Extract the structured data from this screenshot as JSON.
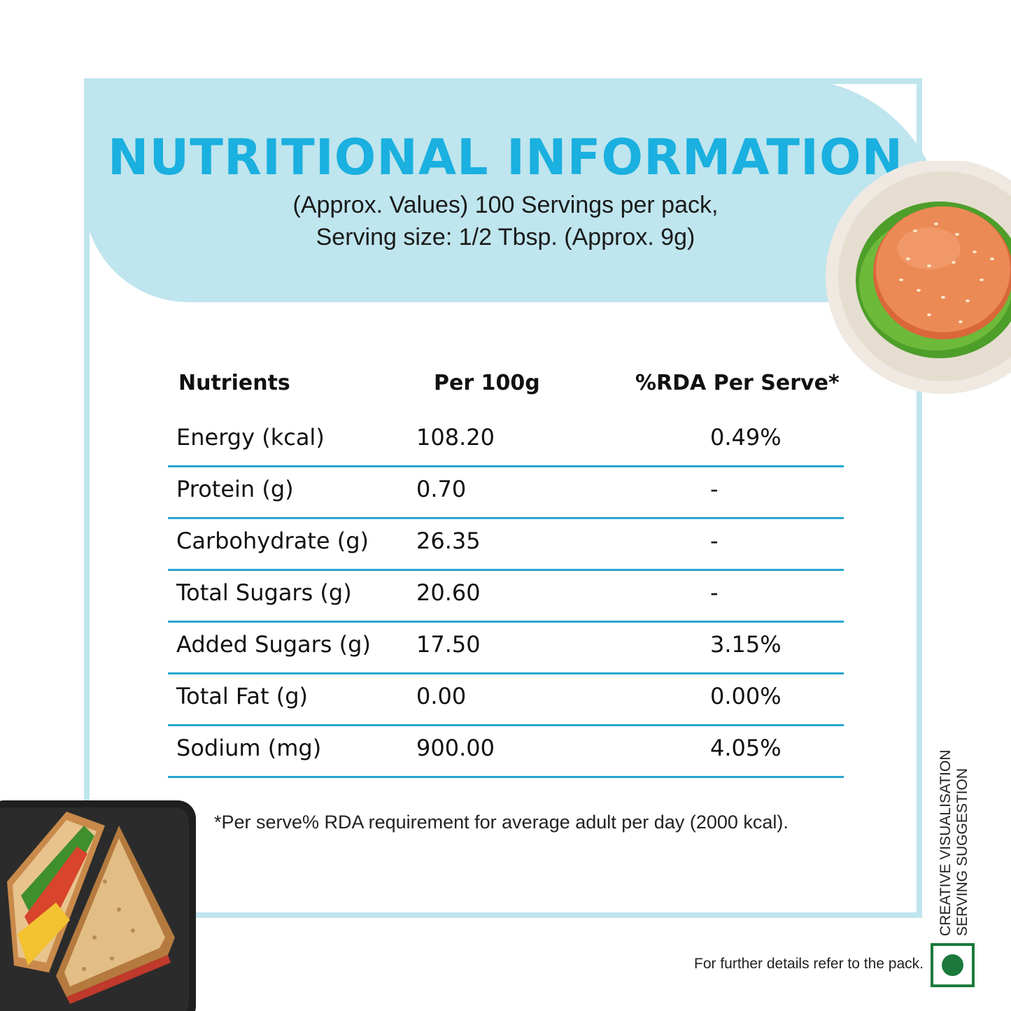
{
  "header": {
    "title": "NUTRITIONAL INFORMATION",
    "subtitle_line1": "(Approx. Values) 100 Servings per pack,",
    "subtitle_line2": "Serving size: 1/2 Tbsp. (Approx. 9g)"
  },
  "table": {
    "headers": [
      "Nutrients",
      "Per 100g",
      "%RDA Per Serve*"
    ],
    "rows": [
      [
        "Energy (kcal)",
        "108.20",
        "0.49%"
      ],
      [
        "Protein (g)",
        "0.70",
        "-"
      ],
      [
        "Carbohydrate (g)",
        "26.35",
        "-"
      ],
      [
        "Total Sugars (g)",
        "20.60",
        "-"
      ],
      [
        "Added Sugars (g)",
        "17.50",
        "3.15%"
      ],
      [
        "Total Fat (g)",
        "0.00",
        "0.00%"
      ],
      [
        "Sodium (mg)",
        "900.00",
        "4.05%"
      ]
    ]
  },
  "footnote": "*Per serve% RDA requirement for average adult per day (2000 kcal).",
  "further_details": "For further details refer to the pack.",
  "side_note": {
    "line1": "CREATIVE VISUALISATION",
    "line2": "SERVING SUGGESTION"
  },
  "colors": {
    "accent": "#1ab0df",
    "band": "#bfe5ee",
    "rule": "#2aa6d2",
    "veg_green": "#1b7a3b"
  },
  "icons": [
    "burger-plate-image",
    "sandwich-plate-image",
    "veg-symbol-icon"
  ]
}
